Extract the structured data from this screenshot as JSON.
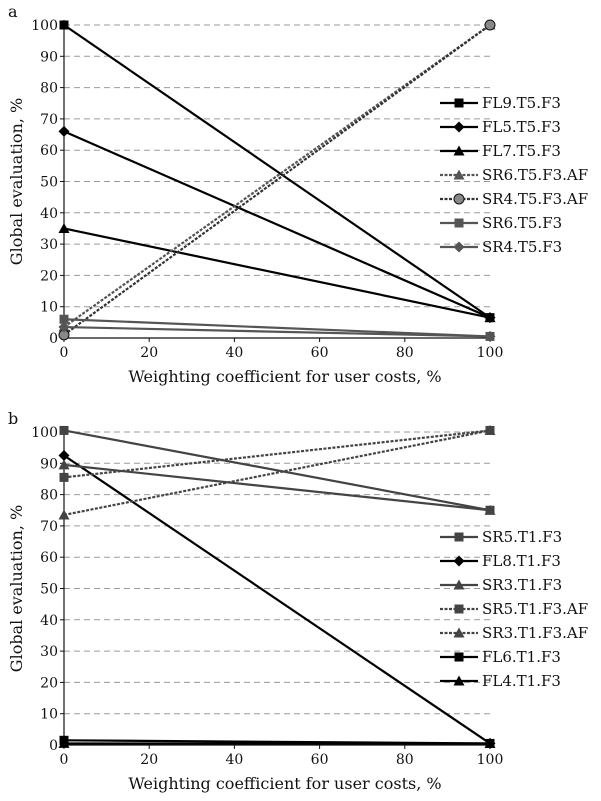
{
  "chart_data": [
    {
      "panel_label": "a",
      "type": "line",
      "xlabel": "Weighting coefficient for user costs, %",
      "ylabel": "Global evaluation, %",
      "xlim": [
        0,
        100
      ],
      "ylim": [
        0,
        100
      ],
      "x_ticks": [
        0,
        20,
        40,
        60,
        80,
        100
      ],
      "y_ticks": [
        0,
        10,
        20,
        30,
        40,
        50,
        60,
        70,
        80,
        90,
        100
      ],
      "grid": "horizontal-dashed",
      "legend_position": "right",
      "series": [
        {
          "name": "FL9.T5.F3",
          "x": [
            0,
            100
          ],
          "y": [
            100,
            6.5
          ],
          "style": "solid",
          "marker": "square",
          "color": "#000000"
        },
        {
          "name": "FL5.T5.F3",
          "x": [
            0,
            100
          ],
          "y": [
            66,
            6.5
          ],
          "style": "solid",
          "marker": "diamond",
          "color": "#000000"
        },
        {
          "name": "FL7.T5.F3",
          "x": [
            0,
            100
          ],
          "y": [
            35,
            6.5
          ],
          "style": "solid",
          "marker": "triangle",
          "color": "#000000"
        },
        {
          "name": "SR6.T5.F3.AF",
          "x": [
            0,
            100
          ],
          "y": [
            3.5,
            100
          ],
          "style": "dashed",
          "marker": "triangle",
          "color": "#555555"
        },
        {
          "name": "SR4.T5.F3.AF",
          "x": [
            0,
            100
          ],
          "y": [
            1,
            100
          ],
          "style": "dashed",
          "marker": "circle",
          "color": "#333333"
        },
        {
          "name": "SR6.T5.F3",
          "x": [
            0,
            100
          ],
          "y": [
            6,
            0.5
          ],
          "style": "solid",
          "marker": "square",
          "color": "#555555"
        },
        {
          "name": "SR4.T5.F3",
          "x": [
            0,
            100
          ],
          "y": [
            3.5,
            0.5
          ],
          "style": "solid",
          "marker": "diamond",
          "color": "#555555"
        }
      ]
    },
    {
      "panel_label": "b",
      "type": "line",
      "xlabel": "Weighting coefficient for user costs, %",
      "ylabel": "Global evaluation, %",
      "xlim": [
        0,
        100
      ],
      "ylim": [
        0,
        100
      ],
      "x_ticks": [
        0,
        20,
        40,
        60,
        80,
        100
      ],
      "y_ticks": [
        0,
        10,
        20,
        30,
        40,
        50,
        60,
        70,
        80,
        90,
        100
      ],
      "grid": "horizontal-dashed",
      "legend_position": "right",
      "series": [
        {
          "name": "SR5.T1.F3",
          "x": [
            0,
            100
          ],
          "y": [
            100.5,
            75
          ],
          "style": "solid",
          "marker": "square",
          "color": "#444444"
        },
        {
          "name": "FL8.T1.F3",
          "x": [
            0,
            100
          ],
          "y": [
            92.5,
            0.5
          ],
          "style": "solid",
          "marker": "diamond",
          "color": "#000000"
        },
        {
          "name": "SR3.T1.F3",
          "x": [
            0,
            100
          ],
          "y": [
            89.5,
            75
          ],
          "style": "solid",
          "marker": "triangle",
          "color": "#444444"
        },
        {
          "name": "SR5.T1.F3.AF",
          "x": [
            0,
            100
          ],
          "y": [
            85.5,
            100.5
          ],
          "style": "dashed",
          "marker": "square",
          "color": "#444444"
        },
        {
          "name": "SR3.T1.F3.AF",
          "x": [
            0,
            100
          ],
          "y": [
            73.5,
            100.5
          ],
          "style": "dashed",
          "marker": "triangle",
          "color": "#444444"
        },
        {
          "name": "FL6.T1.F3",
          "x": [
            0,
            100
          ],
          "y": [
            1.5,
            0.5
          ],
          "style": "solid",
          "marker": "square",
          "color": "#000000"
        },
        {
          "name": "FL4.T1.F3",
          "x": [
            0,
            100
          ],
          "y": [
            0.5,
            0.5
          ],
          "style": "solid",
          "marker": "triangle",
          "color": "#000000"
        }
      ]
    }
  ]
}
